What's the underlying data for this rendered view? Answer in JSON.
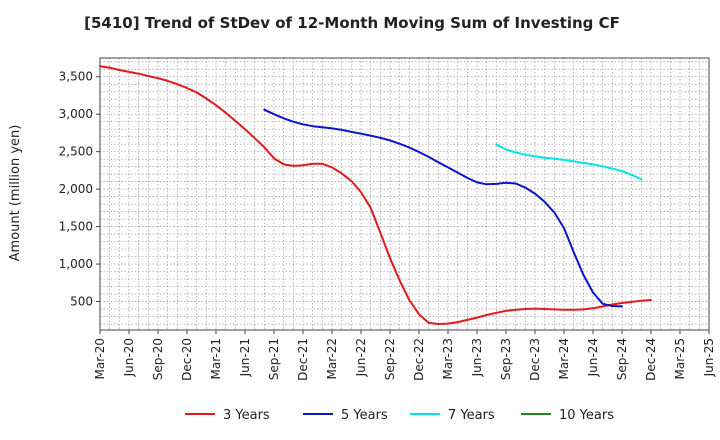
{
  "chart_data": {
    "type": "line",
    "title": "[5410]  Trend of StDev of 12-Month Moving Sum of Investing CF",
    "xlabel": "",
    "ylabel": "Amount (million yen)",
    "ylim": [
      120,
      3750
    ],
    "yticks": [
      500,
      1000,
      1500,
      2000,
      2500,
      3000,
      3500
    ],
    "ytick_labels": [
      "500",
      "1,000",
      "1,500",
      "2,000",
      "2,500",
      "3,000",
      "3,500"
    ],
    "xticks": [
      "2020-03",
      "2020-06",
      "2020-09",
      "2020-12",
      "2021-03",
      "2021-06",
      "2021-09",
      "2021-12",
      "2022-03",
      "2022-06",
      "2022-09",
      "2022-12",
      "2023-03",
      "2023-06",
      "2023-09",
      "2023-12",
      "2024-03",
      "2024-06",
      "2024-09",
      "2024-12",
      "2025-03",
      "2025-06"
    ],
    "xtick_labels": [
      "Mar-20",
      "Jun-20",
      "Sep-20",
      "Dec-20",
      "Mar-21",
      "Jun-21",
      "Sep-21",
      "Dec-21",
      "Mar-22",
      "Jun-22",
      "Sep-22",
      "Dec-22",
      "Mar-23",
      "Jun-23",
      "Sep-23",
      "Dec-23",
      "Mar-24",
      "Jun-24",
      "Sep-24",
      "Dec-24",
      "Mar-25",
      "Jun-25"
    ],
    "grid": true,
    "legend_position": "bottom",
    "series": [
      {
        "name": "3 Years",
        "color": "#e31a1c",
        "points": [
          [
            "2020-03",
            3640
          ],
          [
            "2020-04",
            3620
          ],
          [
            "2020-05",
            3590
          ],
          [
            "2020-06",
            3565
          ],
          [
            "2020-07",
            3540
          ],
          [
            "2020-08",
            3510
          ],
          [
            "2020-09",
            3480
          ],
          [
            "2020-10",
            3445
          ],
          [
            "2020-11",
            3400
          ],
          [
            "2020-12",
            3350
          ],
          [
            "2021-01",
            3290
          ],
          [
            "2021-02",
            3210
          ],
          [
            "2021-03",
            3120
          ],
          [
            "2021-04",
            3020
          ],
          [
            "2021-05",
            2910
          ],
          [
            "2021-06",
            2800
          ],
          [
            "2021-07",
            2680
          ],
          [
            "2021-08",
            2560
          ],
          [
            "2021-09",
            2410
          ],
          [
            "2021-10",
            2330
          ],
          [
            "2021-11",
            2310
          ],
          [
            "2021-12",
            2320
          ],
          [
            "2022-01",
            2340
          ],
          [
            "2022-02",
            2340
          ],
          [
            "2022-03",
            2290
          ],
          [
            "2022-04",
            2210
          ],
          [
            "2022-05",
            2110
          ],
          [
            "2022-06",
            1960
          ],
          [
            "2022-07",
            1750
          ],
          [
            "2022-08",
            1420
          ],
          [
            "2022-09",
            1080
          ],
          [
            "2022-10",
            780
          ],
          [
            "2022-11",
            520
          ],
          [
            "2022-12",
            330
          ],
          [
            "2023-01",
            215
          ],
          [
            "2023-02",
            200
          ],
          [
            "2023-03",
            205
          ],
          [
            "2023-04",
            225
          ],
          [
            "2023-05",
            255
          ],
          [
            "2023-06",
            285
          ],
          [
            "2023-07",
            320
          ],
          [
            "2023-08",
            350
          ],
          [
            "2023-09",
            375
          ],
          [
            "2023-10",
            390
          ],
          [
            "2023-11",
            400
          ],
          [
            "2023-12",
            405
          ],
          [
            "2024-01",
            400
          ],
          [
            "2024-02",
            395
          ],
          [
            "2024-03",
            390
          ],
          [
            "2024-04",
            390
          ],
          [
            "2024-05",
            395
          ],
          [
            "2024-06",
            410
          ],
          [
            "2024-07",
            435
          ],
          [
            "2024-08",
            460
          ],
          [
            "2024-09",
            480
          ],
          [
            "2024-10",
            495
          ],
          [
            "2024-11",
            510
          ],
          [
            "2024-12",
            520
          ]
        ]
      },
      {
        "name": "5 Years",
        "color": "#0a14c8",
        "points": [
          [
            "2021-08",
            3060
          ],
          [
            "2021-09",
            3000
          ],
          [
            "2021-10",
            2945
          ],
          [
            "2021-11",
            2900
          ],
          [
            "2021-12",
            2865
          ],
          [
            "2022-01",
            2840
          ],
          [
            "2022-02",
            2825
          ],
          [
            "2022-03",
            2810
          ],
          [
            "2022-04",
            2790
          ],
          [
            "2022-05",
            2765
          ],
          [
            "2022-06",
            2740
          ],
          [
            "2022-07",
            2715
          ],
          [
            "2022-08",
            2685
          ],
          [
            "2022-09",
            2650
          ],
          [
            "2022-10",
            2605
          ],
          [
            "2022-11",
            2555
          ],
          [
            "2022-12",
            2495
          ],
          [
            "2023-01",
            2430
          ],
          [
            "2023-02",
            2360
          ],
          [
            "2023-03",
            2290
          ],
          [
            "2023-04",
            2220
          ],
          [
            "2023-05",
            2150
          ],
          [
            "2023-06",
            2090
          ],
          [
            "2023-07",
            2065
          ],
          [
            "2023-08",
            2070
          ],
          [
            "2023-09",
            2085
          ],
          [
            "2023-10",
            2075
          ],
          [
            "2023-11",
            2020
          ],
          [
            "2023-12",
            1940
          ],
          [
            "2024-01",
            1830
          ],
          [
            "2024-02",
            1690
          ],
          [
            "2024-03",
            1480
          ],
          [
            "2024-04",
            1160
          ],
          [
            "2024-05",
            860
          ],
          [
            "2024-06",
            620
          ],
          [
            "2024-07",
            470
          ],
          [
            "2024-08",
            440
          ],
          [
            "2024-09",
            435
          ]
        ]
      },
      {
        "name": "7 Years",
        "color": "#00e5ee",
        "points": [
          [
            "2023-08",
            2595
          ],
          [
            "2023-09",
            2530
          ],
          [
            "2023-10",
            2490
          ],
          [
            "2023-11",
            2460
          ],
          [
            "2023-12",
            2440
          ],
          [
            "2024-01",
            2420
          ],
          [
            "2024-02",
            2405
          ],
          [
            "2024-03",
            2390
          ],
          [
            "2024-04",
            2370
          ],
          [
            "2024-05",
            2350
          ],
          [
            "2024-06",
            2330
          ],
          [
            "2024-07",
            2305
          ],
          [
            "2024-08",
            2275
          ],
          [
            "2024-09",
            2240
          ],
          [
            "2024-10",
            2190
          ],
          [
            "2024-11",
            2130
          ]
        ]
      },
      {
        "name": "10 Years",
        "color": "#1a8c1a",
        "points": []
      }
    ]
  }
}
